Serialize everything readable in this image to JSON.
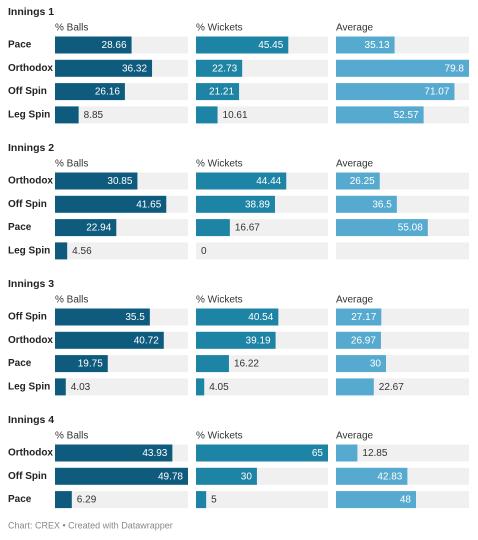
{
  "chart_data": [
    {
      "type": "bar",
      "title": "Innings 1",
      "categories": [
        "Pace",
        "Orthodox",
        "Off Spin",
        "Leg Spin"
      ],
      "series": [
        {
          "name": "% Balls",
          "color": "#0f5b7d",
          "values": [
            28.66,
            36.32,
            26.16,
            8.85
          ]
        },
        {
          "name": "% Wickets",
          "color": "#1e84a5",
          "values": [
            45.45,
            22.73,
            21.21,
            10.61
          ]
        },
        {
          "name": "Average",
          "color": "#56a9cf",
          "values": [
            35.13,
            79.8,
            71.07,
            52.57
          ]
        }
      ]
    },
    {
      "type": "bar",
      "title": "Innings 2",
      "categories": [
        "Orthodox",
        "Off Spin",
        "Pace",
        "Leg Spin"
      ],
      "series": [
        {
          "name": "% Balls",
          "color": "#0f5b7d",
          "values": [
            30.85,
            41.65,
            22.94,
            4.56
          ]
        },
        {
          "name": "% Wickets",
          "color": "#1e84a5",
          "values": [
            44.44,
            38.89,
            16.67,
            0
          ]
        },
        {
          "name": "Average",
          "color": "#56a9cf",
          "values": [
            26.25,
            36.5,
            55.08,
            null
          ]
        }
      ]
    },
    {
      "type": "bar",
      "title": "Innings 3",
      "categories": [
        "Off Spin",
        "Orthodox",
        "Pace",
        "Leg Spin"
      ],
      "series": [
        {
          "name": "% Balls",
          "color": "#0f5b7d",
          "values": [
            35.5,
            40.72,
            19.75,
            4.03
          ]
        },
        {
          "name": "% Wickets",
          "color": "#1e84a5",
          "values": [
            40.54,
            39.19,
            16.22,
            4.05
          ]
        },
        {
          "name": "Average",
          "color": "#56a9cf",
          "values": [
            27.17,
            26.97,
            30,
            22.67
          ]
        }
      ]
    },
    {
      "type": "bar",
      "title": "Innings 4",
      "categories": [
        "Orthodox",
        "Off Spin",
        "Pace"
      ],
      "series": [
        {
          "name": "% Balls",
          "color": "#0f5b7d",
          "values": [
            43.93,
            49.78,
            6.29
          ]
        },
        {
          "name": "% Wickets",
          "color": "#1e84a5",
          "values": [
            65,
            30,
            5
          ]
        },
        {
          "name": "Average",
          "color": "#56a9cf",
          "values": [
            12.85,
            42.83,
            48
          ]
        }
      ]
    }
  ],
  "footer": "Chart: CREX • Created with Datawrapper"
}
